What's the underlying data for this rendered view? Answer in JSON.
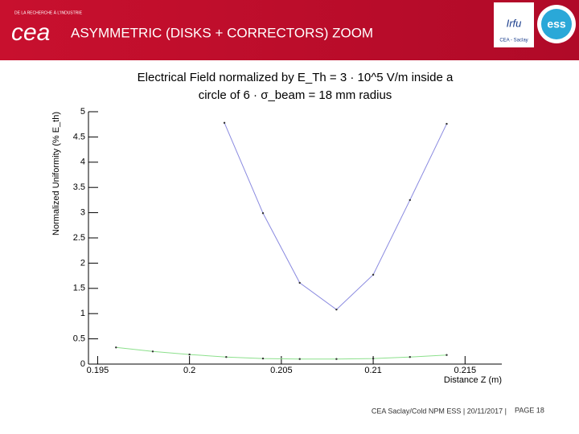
{
  "header": {
    "title": "ASYMMETRIC (DISKS + CORRECTORS) ZOOM",
    "tagline": "DE LA RECHERCHE À L'INDUSTRIE",
    "logo": "cea",
    "logo_irfu": "Irfu",
    "logo_irfu_sub": "CEA - Saclay",
    "logo_ess": "ess"
  },
  "footer": {
    "text": "CEA Saclay/Cold NPM ESS | 20/11/2017 |",
    "page": "PAGE 18"
  },
  "chart_data": {
    "type": "line",
    "title": [
      "Electrical Field normalized by E_Th = 3 · 10^5 V/m inside a",
      "circle of 6 · σ_beam = 18 mm radius"
    ],
    "x_label": "Distance Z (m)",
    "y_label": "Normalized Uniformity (% E_th)",
    "xlim": [
      0.1945,
      0.217
    ],
    "ylim": [
      0,
      5
    ],
    "xticks": [
      0.195,
      {
        "value": 0.2,
        "label": "0.2"
      },
      0.205,
      {
        "value": 0.21,
        "label": "0.21"
      },
      0.215
    ],
    "yticks": [
      0,
      0.5,
      1,
      1.5,
      2,
      2.5,
      3,
      3.5,
      4,
      4.5,
      5
    ],
    "series": [
      {
        "color": "#8a8ae0",
        "x": [
          0.2019,
          0.204,
          0.206,
          0.208,
          0.21,
          0.212,
          0.214
        ],
        "values": [
          4.78,
          2.99,
          1.61,
          1.08,
          1.77,
          3.25,
          4.76
        ]
      },
      {
        "color": "#8ce08c",
        "x": [
          0.196,
          0.198,
          0.2,
          0.202,
          0.204,
          0.206,
          0.208,
          0.21,
          0.212,
          0.214
        ],
        "values": [
          0.33,
          0.25,
          0.19,
          0.14,
          0.11,
          0.1,
          0.1,
          0.11,
          0.14,
          0.18
        ]
      }
    ]
  }
}
